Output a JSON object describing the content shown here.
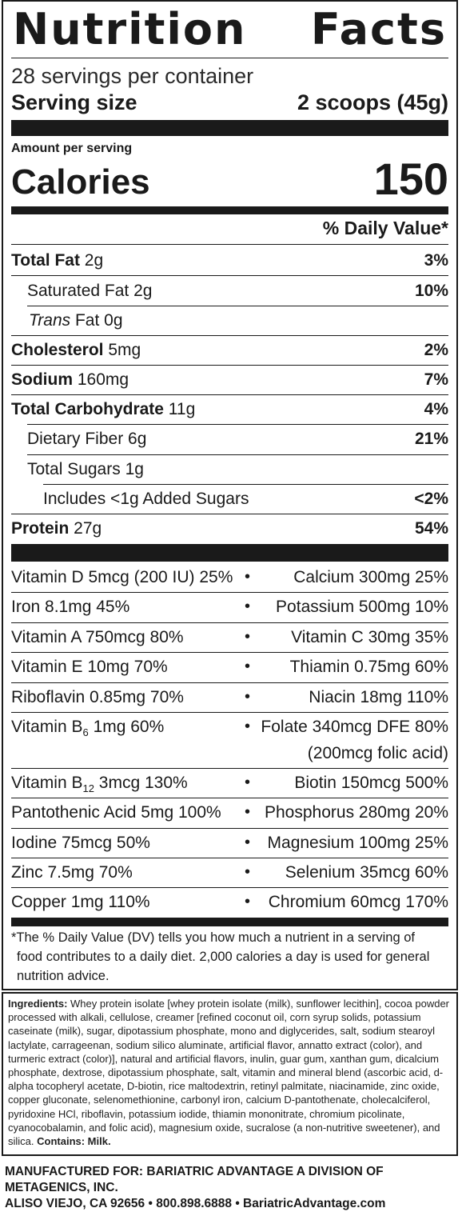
{
  "title": {
    "word1": "Nutrition",
    "word2": "Facts"
  },
  "servings_per_container": "28 servings per container",
  "serving_size": {
    "label": "Serving size",
    "value": "2 scoops (45g)"
  },
  "amount_per_serving": "Amount per serving",
  "calories": {
    "label": "Calories",
    "value": "150"
  },
  "dv_header": "% Daily Value*",
  "nutrients": [
    {
      "name": "Total Fat",
      "amount": " 2g",
      "dv": "3%"
    },
    {
      "name": "Saturated Fat 2g",
      "amount": "",
      "dv": "10%"
    },
    {
      "name": "Trans",
      "amount": " Fat 0g",
      "dv": ""
    },
    {
      "name": "Cholesterol",
      "amount": " 5mg",
      "dv": "2%"
    },
    {
      "name": "Sodium",
      "amount": " 160mg",
      "dv": "7%"
    },
    {
      "name": "Total Carbohydrate",
      "amount": " 11g",
      "dv": "4%"
    },
    {
      "name": "Dietary Fiber 6g",
      "amount": "",
      "dv": "21%"
    },
    {
      "name": "Total Sugars 1g",
      "amount": "",
      "dv": ""
    },
    {
      "name": "Includes <1g Added Sugars",
      "amount": "",
      "dv": "<2%"
    },
    {
      "name": "Protein",
      "amount": " 27g",
      "dv": "54%"
    }
  ],
  "vitamins": [
    {
      "left": "Vitamin D 5mcg (200 IU) 25%",
      "right": "Calcium 300mg 25%"
    },
    {
      "left": "Iron 8.1mg 45%",
      "right": "Potassium 500mg 10%"
    },
    {
      "left": "Vitamin A 750mcg 80%",
      "right": "Vitamin C 30mg 35%"
    },
    {
      "left": "Vitamin E 10mg 70%",
      "right": "Thiamin 0.75mg 60%"
    },
    {
      "left": "Riboflavin 0.85mg 70%",
      "right": "Niacin 18mg 110%"
    },
    {
      "left_pre": "Vitamin B",
      "left_sub": "6",
      "left_post": " 1mg 60%",
      "right": "Folate 340mcg DFE 80%",
      "right2": "(200mcg folic acid)"
    },
    {
      "left_pre": "Vitamin B",
      "left_sub": "12",
      "left_post": " 3mcg 130%",
      "right": "Biotin 150mcg 500%"
    },
    {
      "left": "Pantothenic Acid 5mg 100%",
      "right": "Phosphorus 280mg 20%"
    },
    {
      "left": "Iodine 75mcg 50%",
      "right": "Magnesium 100mg 25%"
    },
    {
      "left": "Zinc 7.5mg 70%",
      "right": "Selenium 35mcg 60%"
    },
    {
      "left": "Copper 1mg 110%",
      "right": "Chromium 60mcg 170%"
    }
  ],
  "bullet": "•",
  "footnote": {
    "line1": "*The % Daily Value (DV) tells you how much a nutrient in a serving of",
    "line2": "food contributes to a daily diet. 2,000 calories a day is used for general",
    "line3": "nutrition advice."
  },
  "ingredients": {
    "label": "Ingredients:",
    "text": " Whey protein isolate [whey protein isolate (milk), sunflower lecithin], cocoa powder processed with alkali, cellulose, creamer [refined coconut oil, corn syrup solids, potassium caseinate (milk), sugar, dipotassium phosphate, mono and diglycerides, salt, sodium stearoyl lactylate, carrageenan, sodium silico aluminate, artificial flavor, annatto extract (color), and turmeric extract (color)], natural and artificial flavors, inulin, guar gum, xanthan gum, dicalcium phosphate, dextrose, dipotassium phosphate, salt, vitamin and mineral blend (ascorbic acid, d-alpha tocopheryl acetate, D-biotin, rice maltodextrin, retinyl palmitate, niacinamide, zinc oxide, copper gluconate, selenomethionine, carbonyl iron, calcium D-pantothenate, cholecalciferol, pyridoxine HCl, riboflavin, potassium iodide, thiamin mononitrate, chromium picolinate, cyanocobalamin, and folic acid), magnesium oxide, sucralose (a non-nutritive sweetener), and silica.",
    "contains": " Contains: Milk."
  },
  "manufacturer": {
    "line1": "MANUFACTURED FOR: BARIATRIC ADVANTAGE A DIVISION OF METAGENICS, INC.",
    "line2": "ALISO VIEJO, CA 92656 • 800.898.6888 • BariatricAdvantage.com"
  }
}
